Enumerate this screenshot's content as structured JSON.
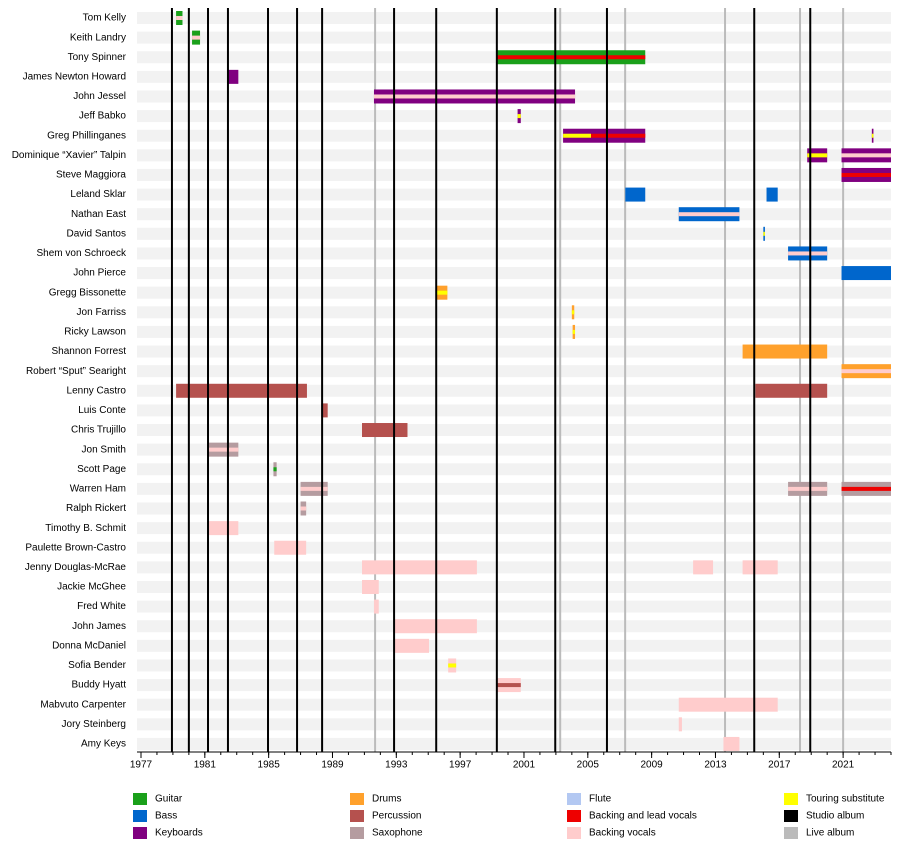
{
  "chart_data": {
    "type": "timeline",
    "xlim": [
      1976.75,
      2024
    ],
    "xticks": [
      1977,
      1981,
      1985,
      1989,
      1993,
      1997,
      2001,
      2005,
      2009,
      2013,
      2017,
      2021
    ],
    "legend": [
      {
        "name": "Guitar",
        "color": "#1aa01a"
      },
      {
        "name": "Bass",
        "color": "#0066cc"
      },
      {
        "name": "Keyboards",
        "color": "#800080"
      },
      {
        "name": "Drums",
        "color": "#ffa12c"
      },
      {
        "name": "Percussion",
        "color": "#b5514e"
      },
      {
        "name": "Saxophone",
        "color": "#b59ca0"
      },
      {
        "name": "Flute",
        "color": "#b3c8f2"
      },
      {
        "name": "Backing and lead vocals",
        "color": "#ee0000"
      },
      {
        "name": "Backing vocals",
        "color": "#ffcccc"
      },
      {
        "name": "Touring substitute",
        "color": "#ffff00"
      },
      {
        "name": "Studio album",
        "color": "#000000"
      },
      {
        "name": "Live album",
        "color": "#bbbbbb"
      }
    ],
    "studio_albums": [
      1978.94,
      1980.0,
      1981.2,
      1982.45,
      1984.96,
      1986.78,
      1988.35,
      1992.86,
      1995.5,
      1999.3,
      2002.96,
      2006.2,
      2015.43,
      2018.94
    ],
    "live_albums": [
      1991.67,
      2003.27,
      2007.34,
      2013.6,
      2018.3,
      2021.0
    ],
    "members": [
      {
        "name": "Tom Kelly",
        "bars": [
          {
            "start": 1979.2,
            "end": 1979.6,
            "role": "Guitar",
            "stripe": "Backing vocals"
          }
        ]
      },
      {
        "name": "Keith Landry",
        "bars": [
          {
            "start": 1980.2,
            "end": 1980.7,
            "role": "Guitar",
            "stripe": "Backing vocals"
          }
        ]
      },
      {
        "name": "Tony Spinner",
        "bars": [
          {
            "start": 1999.3,
            "end": 2008.6,
            "role": "Guitar",
            "stripe": "Backing and lead vocals"
          }
        ]
      },
      {
        "name": "James Newton Howard",
        "bars": [
          {
            "start": 1982.45,
            "end": 1983.1,
            "role": "Keyboards"
          }
        ]
      },
      {
        "name": "John Jessel",
        "bars": [
          {
            "start": 1991.6,
            "end": 2004.2,
            "role": "Keyboards",
            "stripe": "Backing vocals"
          }
        ]
      },
      {
        "name": "Jeff Babko",
        "bars": [
          {
            "start": 2000.6,
            "end": 2000.8,
            "role": "Keyboards",
            "stripe": "Touring substitute"
          }
        ]
      },
      {
        "name": "Greg Phillinganes",
        "bars": [
          {
            "start": 2003.45,
            "end": 2005.2,
            "role": "Keyboards",
            "stripe": "Touring substitute"
          },
          {
            "start": 2005.2,
            "end": 2008.6,
            "role": "Keyboards",
            "stripe": "Backing and lead vocals"
          },
          {
            "start": 2022.8,
            "end": 2022.9,
            "role": "Keyboards",
            "stripe": "Touring substitute"
          }
        ]
      },
      {
        "name": "Dominique “Xavier” Talpin",
        "bars": [
          {
            "start": 2018.75,
            "end": 2020.0,
            "role": "Keyboards",
            "stripe": "Touring substitute"
          },
          {
            "start": 2020.9,
            "end": 2024,
            "role": "Keyboards",
            "stripe": "Backing vocals"
          }
        ]
      },
      {
        "name": "Steve Maggiora",
        "bars": [
          {
            "start": 2020.9,
            "end": 2024,
            "role": "Keyboards",
            "stripe": "Backing and lead vocals"
          }
        ]
      },
      {
        "name": "Leland Sklar",
        "bars": [
          {
            "start": 2007.35,
            "end": 2008.6,
            "role": "Bass"
          },
          {
            "start": 2016.2,
            "end": 2016.9,
            "role": "Bass"
          }
        ]
      },
      {
        "name": "Nathan East",
        "bars": [
          {
            "start": 2010.7,
            "end": 2014.5,
            "role": "Bass",
            "stripe": "Backing vocals"
          }
        ]
      },
      {
        "name": "David Santos",
        "bars": [
          {
            "start": 2016.0,
            "end": 2016.1,
            "role": "Bass",
            "stripe": "Touring substitute"
          }
        ]
      },
      {
        "name": "Shem von Schroeck",
        "bars": [
          {
            "start": 2017.55,
            "end": 2020.0,
            "role": "Bass",
            "stripe": "Backing vocals"
          }
        ]
      },
      {
        "name": "John Pierce",
        "bars": [
          {
            "start": 2020.9,
            "end": 2024,
            "role": "Bass"
          }
        ]
      },
      {
        "name": "Gregg Bissonette",
        "bars": [
          {
            "start": 1995.5,
            "end": 1996.2,
            "role": "Drums",
            "stripe": "Touring substitute"
          }
        ]
      },
      {
        "name": "Jon Farriss",
        "bars": [
          {
            "start": 2004.0,
            "end": 2004.15,
            "role": "Drums",
            "stripe": "Touring substitute"
          }
        ]
      },
      {
        "name": "Ricky Lawson",
        "bars": [
          {
            "start": 2004.05,
            "end": 2004.2,
            "role": "Drums",
            "stripe": "Touring substitute"
          }
        ]
      },
      {
        "name": "Shannon Forrest",
        "bars": [
          {
            "start": 2014.7,
            "end": 2020.0,
            "role": "Drums"
          }
        ]
      },
      {
        "name": "Robert “Sput” Searight",
        "bars": [
          {
            "start": 2020.9,
            "end": 2024,
            "role": "Drums",
            "stripe": "Backing vocals"
          }
        ]
      },
      {
        "name": "Lenny Castro",
        "bars": [
          {
            "start": 1979.2,
            "end": 1987.4,
            "role": "Percussion"
          },
          {
            "start": 2015.5,
            "end": 2020.0,
            "role": "Percussion"
          }
        ]
      },
      {
        "name": "Luis Conte",
        "bars": [
          {
            "start": 1988.3,
            "end": 1988.7,
            "role": "Percussion"
          }
        ]
      },
      {
        "name": "Chris Trujillo",
        "bars": [
          {
            "start": 1990.85,
            "end": 1993.7,
            "role": "Percussion"
          }
        ]
      },
      {
        "name": "Jon Smith",
        "bars": [
          {
            "start": 1981.25,
            "end": 1983.1,
            "role": "Saxophone",
            "stripe": "Backing vocals"
          }
        ]
      },
      {
        "name": "Scott Page",
        "bars": [
          {
            "start": 1985.3,
            "end": 1985.5,
            "role": "Saxophone",
            "stripe": "Guitar"
          }
        ]
      },
      {
        "name": "Warren Ham",
        "bars": [
          {
            "start": 1987.0,
            "end": 1988.7,
            "role": "Saxophone",
            "stripe": "Backing vocals"
          },
          {
            "start": 2017.55,
            "end": 2020.0,
            "role": "Saxophone",
            "stripe": "Backing vocals"
          },
          {
            "start": 2020.9,
            "end": 2024,
            "role": "Saxophone",
            "stripe": "Backing and lead vocals"
          }
        ]
      },
      {
        "name": "Ralph Rickert",
        "bars": [
          {
            "start": 1987.0,
            "end": 1987.35,
            "role": "Saxophone",
            "stripe": "Backing vocals"
          }
        ]
      },
      {
        "name": "Timothy B. Schmit",
        "bars": [
          {
            "start": 1981.25,
            "end": 1983.1,
            "role": "Backing vocals"
          }
        ]
      },
      {
        "name": "Paulette Brown-Castro",
        "bars": [
          {
            "start": 1985.35,
            "end": 1987.35,
            "role": "Backing vocals"
          }
        ]
      },
      {
        "name": "Jenny Douglas-McRae",
        "bars": [
          {
            "start": 1990.85,
            "end": 1998.05,
            "role": "Backing vocals"
          },
          {
            "start": 2011.6,
            "end": 2012.85,
            "role": "Backing vocals"
          },
          {
            "start": 2014.7,
            "end": 2016.9,
            "role": "Backing vocals"
          }
        ]
      },
      {
        "name": "Jackie McGhee",
        "bars": [
          {
            "start": 1990.85,
            "end": 1991.9,
            "role": "Backing vocals"
          }
        ]
      },
      {
        "name": "Fred White",
        "bars": [
          {
            "start": 1991.6,
            "end": 1991.9,
            "role": "Backing vocals"
          }
        ]
      },
      {
        "name": "John James",
        "bars": [
          {
            "start": 1992.85,
            "end": 1998.05,
            "role": "Backing vocals"
          }
        ]
      },
      {
        "name": "Donna McDaniel",
        "bars": [
          {
            "start": 1992.85,
            "end": 1995.05,
            "role": "Backing vocals"
          }
        ]
      },
      {
        "name": "Sofia Bender",
        "bars": [
          {
            "start": 1996.25,
            "end": 1996.75,
            "role": "Backing vocals",
            "stripe": "Touring substitute"
          }
        ]
      },
      {
        "name": "Buddy Hyatt",
        "bars": [
          {
            "start": 1999.3,
            "end": 2000.8,
            "role": "Backing vocals",
            "stripe": "Percussion"
          }
        ]
      },
      {
        "name": "Mabvuto Carpenter",
        "bars": [
          {
            "start": 2010.7,
            "end": 2016.9,
            "role": "Backing vocals"
          }
        ]
      },
      {
        "name": "Jory Steinberg",
        "bars": [
          {
            "start": 2010.7,
            "end": 2010.9,
            "role": "Backing vocals"
          }
        ]
      },
      {
        "name": "Amy Keys",
        "bars": [
          {
            "start": 2013.5,
            "end": 2014.5,
            "role": "Backing vocals"
          }
        ]
      }
    ]
  }
}
